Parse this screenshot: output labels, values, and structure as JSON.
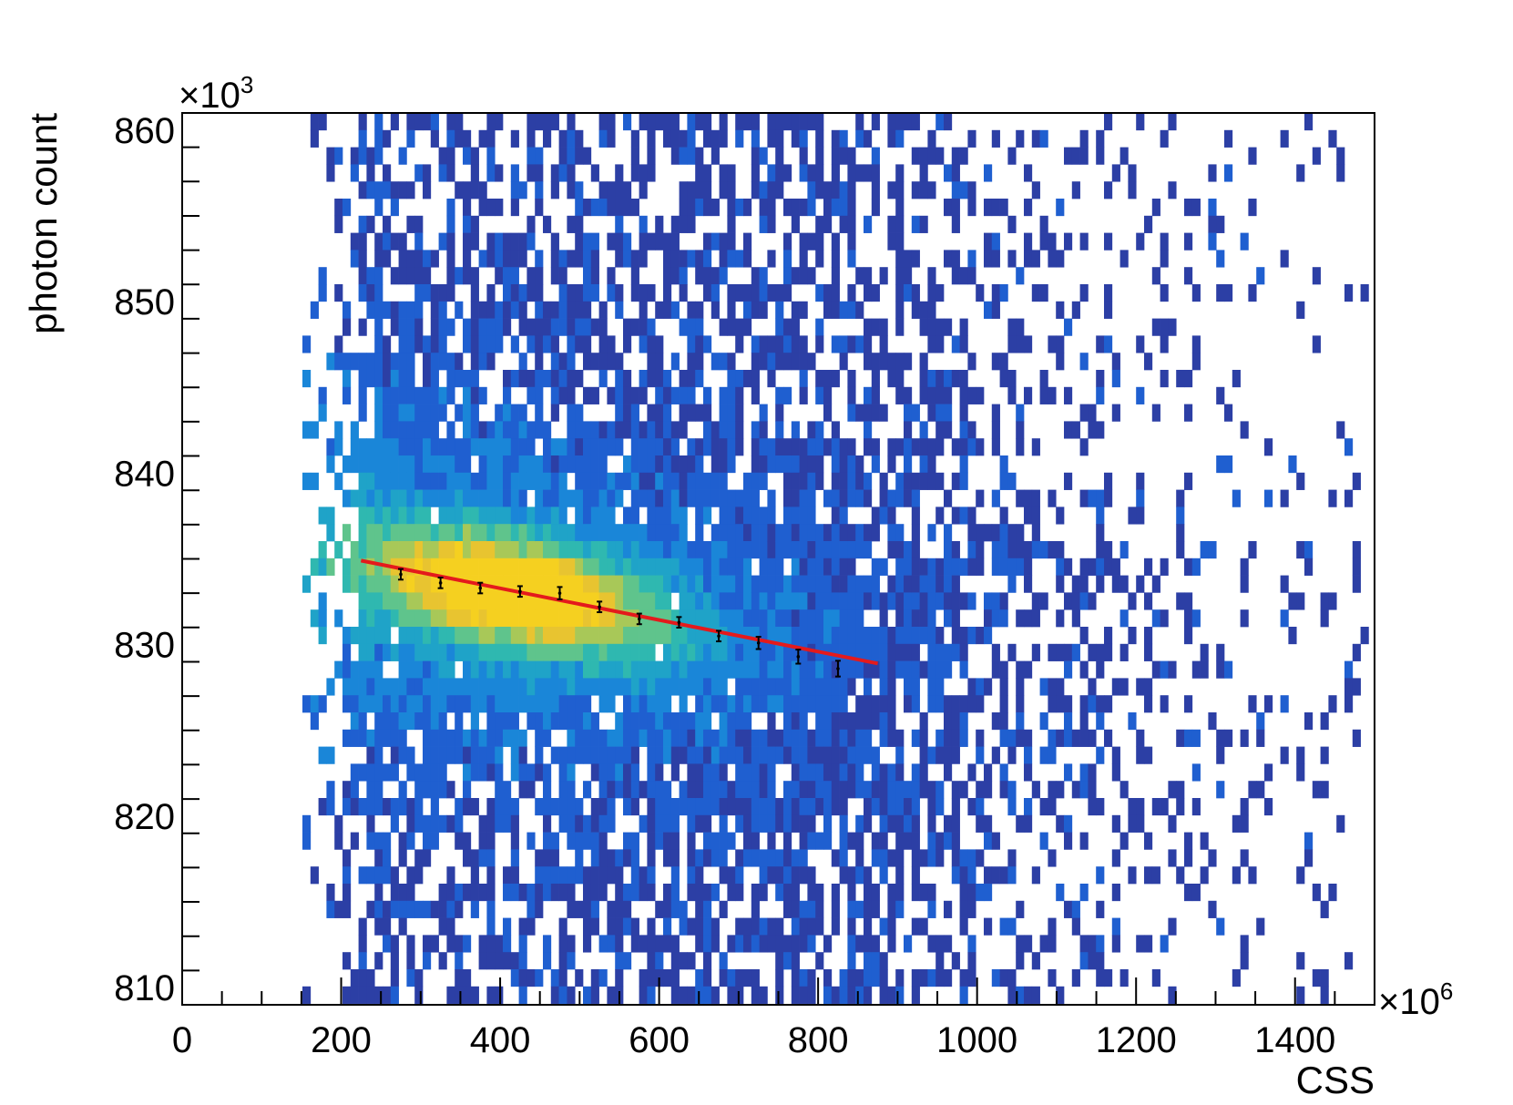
{
  "chart_data": {
    "type": "heatmap",
    "title": "",
    "xlabel": "CSS",
    "ylabel": "photon count",
    "x_multiplier": {
      "symbol": "×10",
      "exponent": "6"
    },
    "y_multiplier": {
      "symbol": "×10",
      "exponent": "3"
    },
    "xlim": [
      0,
      1500
    ],
    "ylim": [
      809,
      861
    ],
    "x_ticks": [
      0,
      200,
      400,
      600,
      800,
      1000,
      1200,
      1400
    ],
    "x_tick_labels": [
      "0",
      "200",
      "400",
      "600",
      "800",
      "1000",
      "1200",
      "1400"
    ],
    "y_ticks": [
      810,
      820,
      830,
      840,
      850,
      860
    ],
    "y_tick_labels": [
      "810",
      "820",
      "830",
      "840",
      "850",
      "860"
    ],
    "colormap": [
      "#2c3fa5",
      "#1f5fd0",
      "#1a86d8",
      "#1fa3c8",
      "#2fb8b0",
      "#5fc48c",
      "#a8c858",
      "#e8c430",
      "#f5d020"
    ],
    "density_model": {
      "core": {
        "x": 420,
        "y": 833.0,
        "sx": 120,
        "sy": 3.2,
        "peak": 1.0
      },
      "band": {
        "x_slope_per_unit": -0.0088,
        "y_width": 5.5
      },
      "support_x": [
        150,
        1500
      ],
      "support_y": [
        809,
        861
      ]
    },
    "profile_points": {
      "name": "",
      "color": "#000000",
      "x": [
        275,
        325,
        375,
        425,
        475,
        525,
        575,
        625,
        675,
        725,
        775,
        825
      ],
      "y": [
        834.1,
        833.6,
        833.3,
        833.1,
        833.0,
        832.2,
        831.5,
        831.3,
        830.5,
        830.1,
        829.3,
        828.6
      ],
      "yerr": [
        0.15,
        0.15,
        0.15,
        0.15,
        0.2,
        0.15,
        0.15,
        0.15,
        0.15,
        0.2,
        0.25,
        0.3
      ]
    },
    "fit_line": {
      "name": "",
      "color": "#e41a1c",
      "x": [
        225,
        875
      ],
      "y": [
        834.9,
        828.9
      ]
    }
  }
}
